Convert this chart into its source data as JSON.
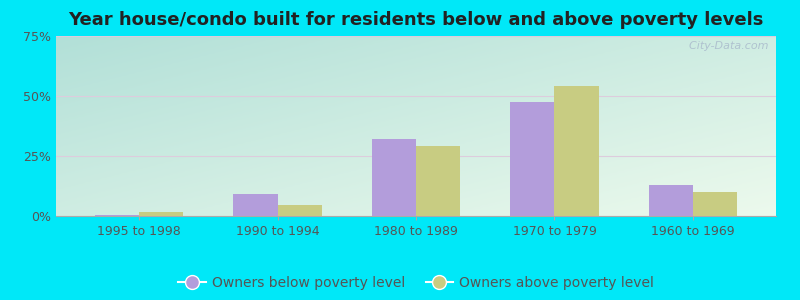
{
  "title": "Year house/condo built for residents below and above poverty levels",
  "categories": [
    "1995 to 1998",
    "1990 to 1994",
    "1980 to 1989",
    "1970 to 1979",
    "1960 to 1969"
  ],
  "below_poverty": [
    0.5,
    9.0,
    32.0,
    47.5,
    13.0
  ],
  "above_poverty": [
    1.5,
    4.5,
    29.0,
    54.0,
    10.0
  ],
  "below_color": "#b39ddb",
  "above_color": "#c8cc82",
  "ylim": [
    0,
    75
  ],
  "yticks": [
    0,
    25,
    50,
    75
  ],
  "ytick_labels": [
    "0%",
    "25%",
    "50%",
    "75%"
  ],
  "grad_top_left": "#b2e0d8",
  "grad_bottom_right": "#edfaed",
  "outer_background": "#00e8f8",
  "legend_below_label": "Owners below poverty level",
  "legend_above_label": "Owners above poverty level",
  "title_fontsize": 13,
  "tick_fontsize": 9,
  "legend_fontsize": 10,
  "bar_width": 0.32,
  "watermark": "  City-Data.com"
}
